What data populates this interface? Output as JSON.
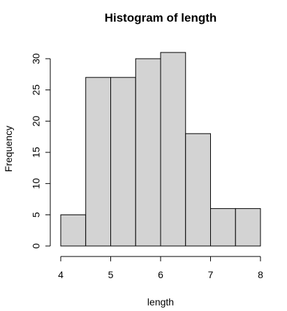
{
  "chart_data": {
    "type": "bar",
    "title": "Histogram of length",
    "xlabel": "length",
    "ylabel": "Frequency",
    "bins": [
      {
        "start": 4.0,
        "end": 4.5,
        "count": 5
      },
      {
        "start": 4.5,
        "end": 5.0,
        "count": 27
      },
      {
        "start": 5.0,
        "end": 5.5,
        "count": 27
      },
      {
        "start": 5.5,
        "end": 6.0,
        "count": 30
      },
      {
        "start": 6.0,
        "end": 6.5,
        "count": 31
      },
      {
        "start": 6.5,
        "end": 7.0,
        "count": 18
      },
      {
        "start": 7.0,
        "end": 7.5,
        "count": 6
      },
      {
        "start": 7.5,
        "end": 8.0,
        "count": 6
      }
    ],
    "xlim": [
      4,
      8
    ],
    "ylim": [
      0,
      31
    ],
    "xticks": [
      "4",
      "5",
      "6",
      "7",
      "8"
    ],
    "yticks": [
      "0",
      "5",
      "10",
      "15",
      "20",
      "25",
      "30"
    ],
    "grid": false,
    "bar_fill": "#d3d3d3",
    "bar_stroke": "#000000"
  }
}
